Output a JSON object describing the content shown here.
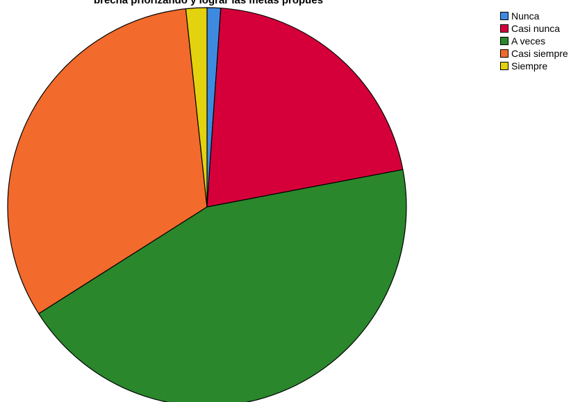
{
  "chart_data": {
    "type": "pie",
    "title": "brecha priorizando y lograr las metas propues",
    "categories": [
      "Nunca",
      "Casi nunca",
      "A veces",
      "Casi siempre",
      "Siempre"
    ],
    "values": [
      1.1,
      20.9,
      44.0,
      32.3,
      1.7
    ],
    "colors": [
      "#3e8ae0",
      "#d5003a",
      "#2a872c",
      "#f26a2c",
      "#e3d20e"
    ],
    "start_angle_deg": 0,
    "direction": "clockwise",
    "legend_position": "top-right"
  }
}
